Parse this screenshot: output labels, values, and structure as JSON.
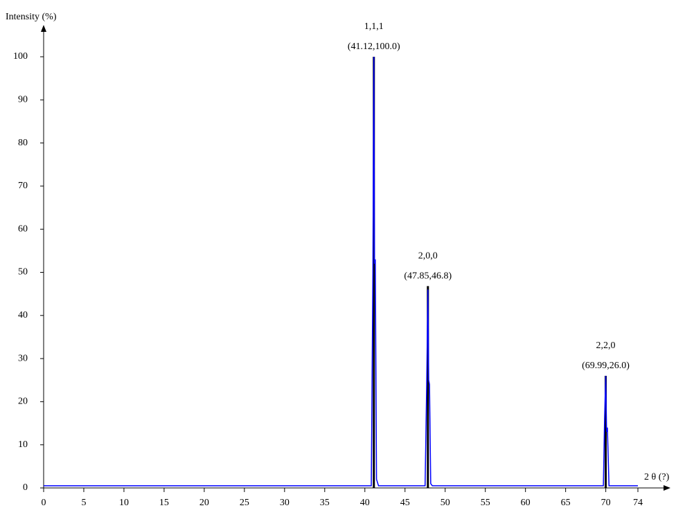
{
  "chart_data": {
    "type": "line",
    "y_label": "Intensity (%)",
    "x_label": "2 θ (?)",
    "xlim": [
      0,
      74
    ],
    "ylim": [
      0,
      100
    ],
    "xticks": [
      0,
      5,
      10,
      15,
      20,
      25,
      30,
      35,
      40,
      45,
      50,
      55,
      60,
      65,
      70,
      74
    ],
    "yticks": [
      0,
      10,
      20,
      30,
      40,
      50,
      60,
      70,
      80,
      90,
      100
    ],
    "series": [
      {
        "color": "#0000ff",
        "x": [
          0,
          40.8,
          41.0,
          41.12,
          41.2,
          41.3,
          41.45,
          41.7,
          47.5,
          47.7,
          47.85,
          47.95,
          48.05,
          48.2,
          48.4,
          69.7,
          69.85,
          69.99,
          70.1,
          70.2,
          70.4,
          74
        ],
        "values": [
          0.5,
          0.5,
          50,
          100,
          52,
          53,
          2,
          0.5,
          0.5,
          24,
          46,
          25,
          24,
          1,
          0.5,
          0.5,
          16,
          26,
          13,
          14,
          0.5,
          0.5
        ]
      }
    ],
    "peaks": [
      {
        "hkl": "1,1,1",
        "position_label": "(41.12,100.0)",
        "x": 41.12,
        "y": 100.0
      },
      {
        "hkl": "2,0,0",
        "position_label": "(47.85,46.8)",
        "x": 47.85,
        "y": 46.8
      },
      {
        "hkl": "2,2,0",
        "position_label": "(69.99,26.0)",
        "x": 69.99,
        "y": 26.0
      }
    ],
    "peak_color": "#000000"
  }
}
